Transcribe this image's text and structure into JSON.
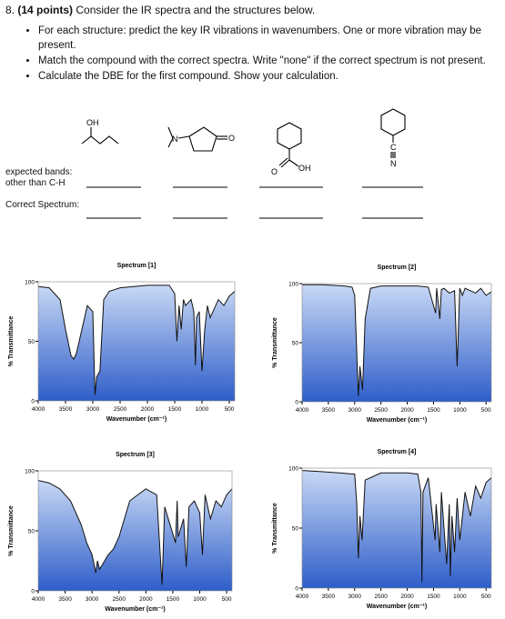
{
  "question": {
    "number": "8.",
    "points": "(14 points)",
    "text": "Consider the IR spectra and the structures below."
  },
  "instructions": [
    "For each structure: predict the key IR vibrations in wavenumbers. One or more vibration may be present.",
    "Match the compound with the correct spectra. Write \"none\" if the correct spectrum is not present.",
    "Calculate the DBE for the first compound. Show your calculation."
  ],
  "structures": [
    {
      "labels": [
        "OH"
      ]
    },
    {
      "labels": [
        "N",
        "O"
      ]
    },
    {
      "labels": [
        "O",
        "OH"
      ]
    },
    {
      "labels": [
        "C",
        "N"
      ]
    }
  ],
  "row_labels": {
    "expected": "expected bands:",
    "other": "other than C-H",
    "correct": "Correct Spectrum:"
  },
  "chart_data": [
    {
      "type": "line",
      "title": "Spectrum [1]",
      "x_label": "Wavenumber (cm⁻¹)",
      "y_label": "% Transmittance",
      "x": [
        4000,
        3800,
        3600,
        3500,
        3400,
        3350,
        3300,
        3200,
        3100,
        3000,
        2960,
        2930,
        2870,
        2800,
        2700,
        2500,
        2000,
        1600,
        1500,
        1460,
        1420,
        1380,
        1340,
        1300,
        1200,
        1150,
        1120,
        1100,
        1050,
        1000,
        950,
        900,
        850,
        800,
        700,
        600,
        500,
        400
      ],
      "values": [
        96,
        95,
        85,
        60,
        38,
        35,
        40,
        60,
        80,
        75,
        5,
        20,
        25,
        85,
        92,
        95,
        97,
        97,
        90,
        50,
        80,
        60,
        85,
        80,
        85,
        75,
        30,
        70,
        75,
        25,
        60,
        80,
        70,
        75,
        85,
        80,
        88,
        92
      ],
      "xlim": [
        4000,
        400
      ],
      "ylim": [
        0,
        100
      ],
      "xticks": [
        4000,
        3500,
        3000,
        2500,
        2000,
        1500,
        1000,
        500
      ],
      "yticks": [
        0,
        50,
        100
      ]
    },
    {
      "type": "line",
      "title": "Spectrum [2]",
      "x_label": "Wavenumber (cm⁻¹)",
      "y_label": "% Transmittance",
      "x": [
        4000,
        3600,
        3200,
        3050,
        3000,
        2930,
        2900,
        2850,
        2800,
        2700,
        2500,
        2000,
        1800,
        1600,
        1460,
        1440,
        1380,
        1350,
        1300,
        1200,
        1100,
        1050,
        1000,
        950,
        900,
        700,
        600,
        500,
        400
      ],
      "values": [
        99,
        99,
        98,
        97,
        90,
        5,
        30,
        10,
        70,
        96,
        98,
        98,
        98,
        97,
        75,
        96,
        70,
        95,
        96,
        92,
        94,
        30,
        96,
        90,
        96,
        92,
        96,
        90,
        93
      ],
      "xlim": [
        4000,
        400
      ],
      "ylim": [
        0,
        100
      ],
      "xticks": [
        4000,
        3500,
        3000,
        2500,
        2000,
        1500,
        1000,
        500
      ],
      "yticks": [
        0,
        50,
        100
      ]
    },
    {
      "type": "line",
      "title": "Spectrum [3]",
      "x_label": "Wavenumber (cm⁻¹)",
      "y_label": "% Transmittance",
      "x": [
        4000,
        3800,
        3600,
        3400,
        3200,
        3100,
        3000,
        2930,
        2900,
        2860,
        2700,
        2600,
        2500,
        2300,
        2000,
        1800,
        1720,
        1700,
        1650,
        1450,
        1420,
        1400,
        1300,
        1250,
        1200,
        1100,
        1000,
        950,
        900,
        800,
        700,
        600,
        500,
        400
      ],
      "values": [
        92,
        90,
        85,
        75,
        55,
        40,
        30,
        15,
        25,
        18,
        30,
        35,
        45,
        75,
        85,
        80,
        20,
        5,
        70,
        40,
        75,
        45,
        60,
        20,
        70,
        75,
        65,
        30,
        80,
        60,
        75,
        70,
        80,
        85
      ],
      "xlim": [
        4000,
        400
      ],
      "ylim": [
        0,
        100
      ],
      "xticks": [
        4000,
        3500,
        3000,
        2500,
        2000,
        1500,
        1000,
        500
      ],
      "yticks": [
        0,
        50,
        100
      ]
    },
    {
      "type": "line",
      "title": "Spectrum [4]",
      "x_label": "Wavenumber (cm⁻¹)",
      "y_label": "% Transmittance",
      "x": [
        4000,
        3600,
        3300,
        3000,
        2960,
        2930,
        2900,
        2860,
        2800,
        2500,
        2000,
        1800,
        1740,
        1720,
        1700,
        1600,
        1470,
        1450,
        1380,
        1350,
        1250,
        1200,
        1180,
        1150,
        1100,
        1050,
        1000,
        900,
        800,
        700,
        600,
        500,
        400
      ],
      "values": [
        98,
        97,
        96,
        95,
        70,
        25,
        60,
        40,
        90,
        96,
        96,
        95,
        80,
        5,
        80,
        92,
        40,
        70,
        30,
        80,
        20,
        70,
        10,
        60,
        30,
        75,
        40,
        80,
        60,
        85,
        75,
        88,
        92
      ],
      "xlim": [
        4000,
        400
      ],
      "ylim": [
        0,
        100
      ],
      "xticks": [
        4000,
        3500,
        3000,
        2500,
        2000,
        1500,
        1000,
        500
      ],
      "yticks": [
        0,
        50,
        100
      ]
    }
  ]
}
